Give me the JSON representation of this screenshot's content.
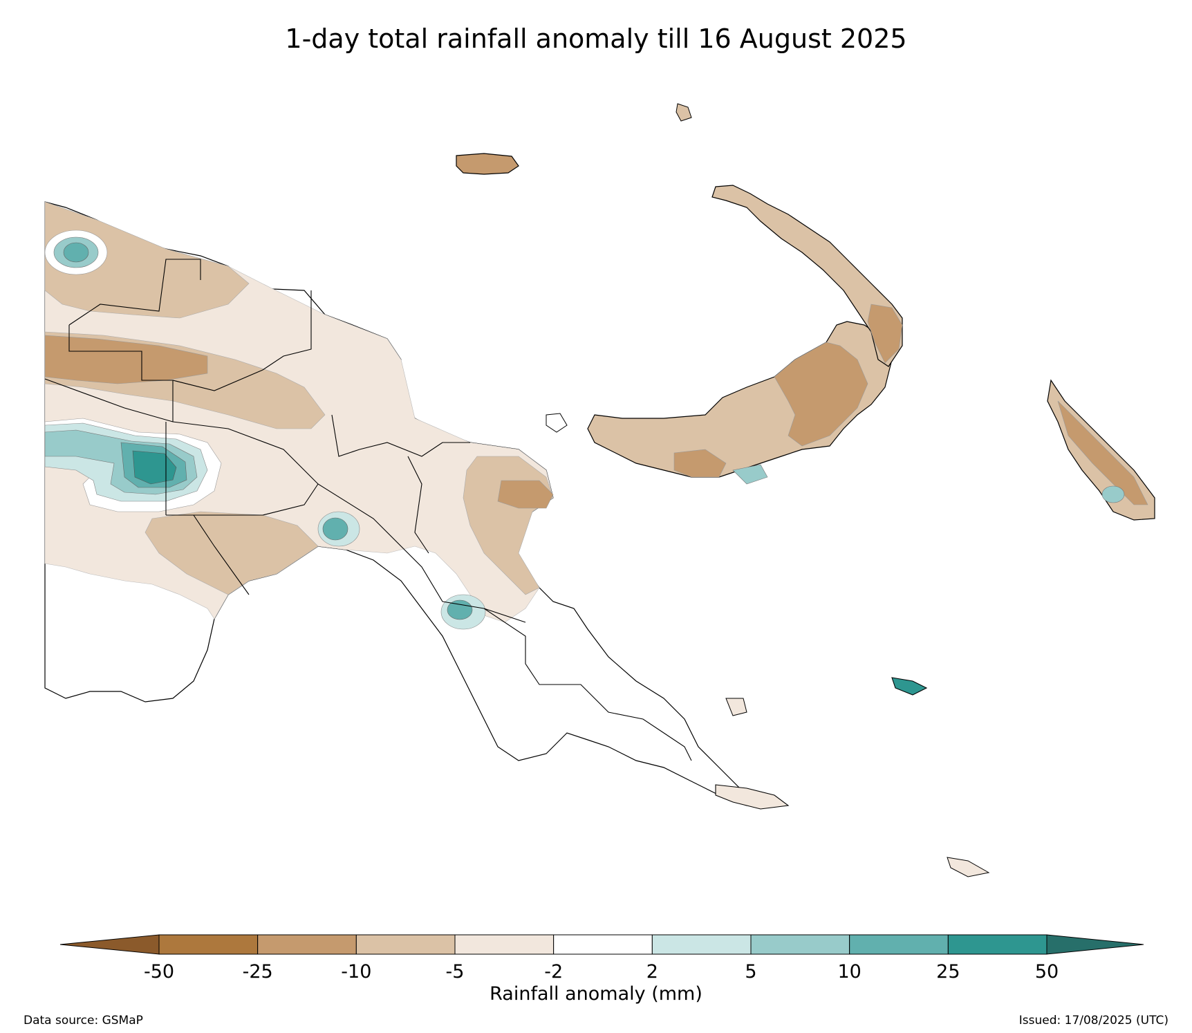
{
  "title": "1-day total rainfall anomaly till 16 August 2025",
  "colorbar": {
    "title": "Rainfall anomaly (mm)",
    "ticks": [
      "-50",
      "-25",
      "-10",
      "-5",
      "-2",
      "2",
      "5",
      "10",
      "25",
      "50"
    ],
    "colors": {
      "lt-50": "#8b5a2b",
      "-50_-25": "#ad783d",
      "-25_-10": "#c59a6e",
      "-10_-5": "#dbc2a6",
      "-5_-2": "#f2e7dd",
      "-2_2": "#ffffff",
      "2_5": "#cbe6e5",
      "5_10": "#98cbca",
      "10_25": "#61b0ae",
      "25_50": "#2e9690",
      "gt-50": "#276f6a"
    }
  },
  "footer": {
    "source": "Data source: GSMaP",
    "issued": "Issued: 17/08/2025 (UTC)"
  }
}
